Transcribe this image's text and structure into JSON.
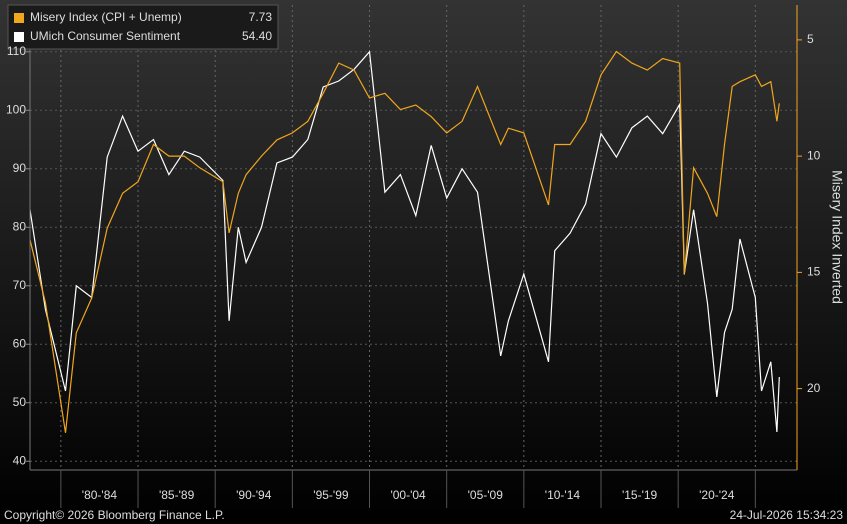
{
  "chart_data": {
    "type": "line",
    "x": [
      1978,
      1979,
      1980.3,
      1981,
      1982,
      1983,
      1984,
      1985,
      1986,
      1987,
      1988,
      1989,
      1990.5,
      1990.9,
      1991.5,
      1992,
      1993,
      1994,
      1995,
      1996,
      1997,
      1998,
      1999,
      2000,
      2001,
      2002,
      2003,
      2004,
      2005,
      2006,
      2007,
      2008.5,
      2009,
      2010,
      2011.6,
      2012,
      2013,
      2014,
      2015,
      2016,
      2017,
      2018,
      2019,
      2020.1,
      2020.4,
      2021,
      2021.9,
      2022.5,
      2023,
      2023.5,
      2024,
      2025,
      2025.4,
      2026,
      2026.4,
      2026.55
    ],
    "series": [
      {
        "name": "Misery Index (CPI + Unemp)",
        "color": "#f0a61d",
        "axis": "y2",
        "last_value": 7.73,
        "values": [
          13.6,
          16.3,
          21.9,
          17.6,
          16.1,
          13.1,
          11.6,
          11.1,
          9.5,
          10.0,
          10.0,
          10.5,
          11.1,
          13.3,
          11.6,
          10.8,
          10.0,
          9.3,
          9.0,
          8.5,
          7.3,
          6.0,
          6.3,
          7.5,
          7.3,
          8.0,
          7.8,
          8.3,
          9.0,
          8.5,
          7.0,
          9.5,
          8.8,
          9.0,
          12.1,
          9.5,
          9.5,
          8.5,
          6.5,
          5.5,
          6.0,
          6.3,
          5.8,
          6.0,
          15.1,
          10.5,
          11.6,
          12.6,
          9.5,
          7.0,
          6.8,
          6.5,
          7.0,
          6.8,
          8.5,
          7.73
        ]
      },
      {
        "name": "UMich Consumer Sentiment",
        "color": "#ffffff",
        "last_value": 54.4,
        "last_label": "54.40",
        "values": [
          83,
          66,
          52,
          70,
          68,
          92,
          99,
          93,
          95,
          89,
          93,
          92,
          88,
          64,
          80,
          74,
          80,
          91,
          92,
          95,
          104,
          105,
          107,
          110,
          86,
          89,
          82,
          94,
          85,
          90,
          86,
          58,
          64,
          72,
          57,
          76,
          79,
          84,
          96,
          92,
          97,
          99,
          96,
          101,
          72,
          83,
          67,
          51,
          62,
          66,
          78,
          68,
          52,
          57,
          45,
          54.4
        ]
      }
    ],
    "xlim": [
      1978,
      2027.7
    ],
    "x_periods": [
      {
        "label": "'80-'84",
        "from": 1980,
        "to": 1985
      },
      {
        "label": "'85-'89",
        "from": 1985,
        "to": 1990
      },
      {
        "label": "'90-'94",
        "from": 1990,
        "to": 1995
      },
      {
        "label": "'95-'99",
        "from": 1995,
        "to": 2000
      },
      {
        "label": "'00-'04",
        "from": 2000,
        "to": 2005
      },
      {
        "label": "'05-'09",
        "from": 2005,
        "to": 2010
      },
      {
        "label": "'10-'14",
        "from": 2010,
        "to": 2015
      },
      {
        "label": "'15-'19",
        "from": 2015,
        "to": 2020
      },
      {
        "label": "'20-'24",
        "from": 2020,
        "to": 2025
      }
    ],
    "ylim": [
      38.5,
      118
    ],
    "yticks": [
      40,
      50,
      60,
      70,
      80,
      90,
      100,
      110
    ],
    "y2lim": [
      3.5,
      23.5
    ],
    "y2_inverted": true,
    "y2ticks": [
      5,
      10,
      15,
      20
    ],
    "y2label": "Misery Index Inverted",
    "grid": true,
    "footer_left": "Copyright© 2026 Bloomberg Finance L.P.",
    "footer_right": "24-Jul-2026 15:34:23"
  }
}
